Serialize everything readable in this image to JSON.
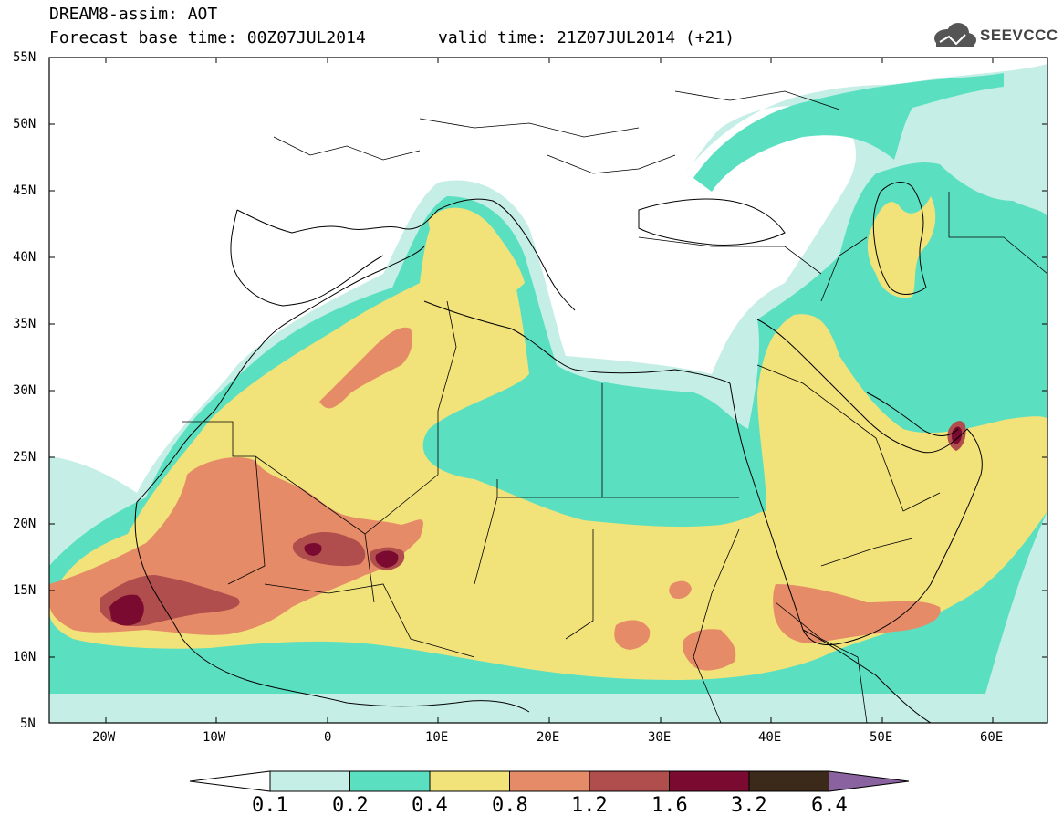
{
  "header": {
    "title_line1": "DREAM8-assim: AOT",
    "title_line2": "Forecast base time: 00Z07JUL2014",
    "valid_time": "valid time: 21Z07JUL2014 (+21)",
    "logo_text": "SEEVCCC"
  },
  "map": {
    "lat_labels": [
      "55N",
      "50N",
      "45N",
      "40N",
      "35N",
      "30N",
      "25N",
      "20N",
      "15N",
      "10N",
      "5N"
    ],
    "lon_labels": [
      "20W",
      "10W",
      "0",
      "10E",
      "20E",
      "30E",
      "40E",
      "50E",
      "60E"
    ]
  },
  "colorbar": {
    "labels": [
      "0.1",
      "0.2",
      "0.4",
      "0.8",
      "1.2",
      "1.6",
      "3.2",
      "6.4"
    ],
    "colors": [
      "#ffffff",
      "#c5eee6",
      "#5ae0c0",
      "#f2e27a",
      "#e58b68",
      "#b04d4d",
      "#7a0a2f",
      "#3b2a1a",
      "#8a62a0"
    ]
  }
}
